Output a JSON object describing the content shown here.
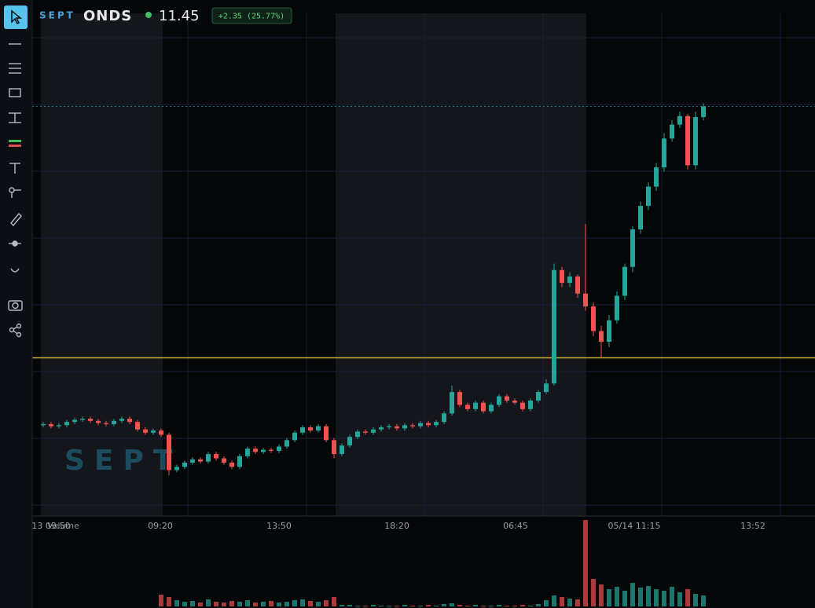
{
  "header": {
    "brand": "SEPT",
    "symbol": "ONDS",
    "last_price": "11.45",
    "change": "+2.35 (25.77%)"
  },
  "watermark": "SEPT",
  "chart_data": {
    "type": "candlestick",
    "x_labels": [
      "13 09:50",
      "09:20",
      "13:50",
      "18:20",
      "06:45",
      "05/14 11:15",
      "13:52"
    ],
    "volume_label": "Volume",
    "ylim": [
      7.62,
      12.32
    ],
    "up_color": "#26a69a",
    "down_color": "#ef5350",
    "price_line": {
      "value": 9.1,
      "color": "#c9b035"
    },
    "last_price_line": {
      "value": 11.45,
      "color": "#26a69a"
    },
    "open": [
      8.47,
      8.48,
      8.46,
      8.47,
      8.5,
      8.52,
      8.53,
      8.51,
      8.49,
      8.48,
      8.51,
      8.53,
      8.5,
      8.43,
      8.4,
      8.42,
      8.38,
      8.05,
      8.08,
      8.12,
      8.15,
      8.13,
      8.2,
      8.16,
      8.12,
      8.08,
      8.18,
      8.25,
      8.22,
      8.24,
      8.23,
      8.27,
      8.33,
      8.4,
      8.45,
      8.42,
      8.46,
      8.33,
      8.2,
      8.28,
      8.36,
      8.41,
      8.4,
      8.43,
      8.45,
      8.46,
      8.44,
      8.47,
      8.46,
      8.49,
      8.47,
      8.5,
      8.58,
      8.78,
      8.66,
      8.62,
      8.68,
      8.6,
      8.66,
      8.74,
      8.7,
      8.68,
      8.62,
      8.7,
      8.78,
      8.86,
      9.92,
      9.8,
      9.86,
      9.7,
      9.58,
      9.35,
      9.25,
      9.45,
      9.68,
      9.95,
      10.3,
      10.52,
      10.7,
      10.88,
      11.15,
      11.28,
      11.36,
      10.9,
      11.35
    ],
    "high": [
      8.5,
      8.5,
      8.49,
      8.52,
      8.54,
      8.55,
      8.55,
      8.53,
      8.51,
      8.53,
      8.55,
      8.55,
      8.52,
      8.45,
      8.44,
      8.44,
      8.4,
      8.1,
      8.14,
      8.17,
      8.17,
      8.22,
      8.22,
      8.18,
      8.14,
      8.2,
      8.27,
      8.27,
      8.26,
      8.26,
      8.29,
      8.35,
      8.42,
      8.47,
      8.47,
      8.48,
      8.48,
      8.35,
      8.3,
      8.38,
      8.43,
      8.43,
      8.45,
      8.47,
      8.48,
      8.48,
      8.49,
      8.49,
      8.51,
      8.51,
      8.52,
      8.6,
      8.84,
      8.8,
      8.68,
      8.7,
      8.7,
      8.68,
      8.76,
      8.76,
      8.72,
      8.7,
      8.72,
      8.8,
      8.9,
      9.98,
      9.95,
      9.9,
      9.88,
      10.35,
      9.62,
      9.4,
      9.5,
      9.72,
      9.98,
      10.33,
      10.56,
      10.74,
      10.92,
      11.2,
      11.32,
      11.4,
      11.38,
      11.4,
      11.48
    ],
    "low": [
      8.45,
      8.44,
      8.44,
      8.45,
      8.48,
      8.5,
      8.49,
      8.47,
      8.46,
      8.46,
      8.49,
      8.48,
      8.41,
      8.38,
      8.38,
      8.36,
      8.0,
      8.03,
      8.06,
      8.1,
      8.11,
      8.11,
      8.14,
      8.1,
      8.06,
      8.06,
      8.16,
      8.2,
      8.2,
      8.21,
      8.21,
      8.25,
      8.31,
      8.38,
      8.4,
      8.4,
      8.31,
      8.16,
      8.18,
      8.26,
      8.34,
      8.38,
      8.38,
      8.41,
      8.43,
      8.42,
      8.42,
      8.44,
      8.44,
      8.45,
      8.45,
      8.48,
      8.56,
      8.64,
      8.6,
      8.6,
      8.58,
      8.58,
      8.64,
      8.68,
      8.66,
      8.6,
      8.6,
      8.68,
      8.76,
      8.84,
      9.76,
      9.76,
      9.66,
      9.54,
      9.3,
      9.1,
      9.2,
      9.42,
      9.64,
      9.9,
      10.26,
      10.48,
      10.66,
      10.84,
      11.12,
      11.25,
      10.86,
      10.86,
      11.32
    ],
    "close": [
      8.48,
      8.46,
      8.47,
      8.5,
      8.52,
      8.53,
      8.51,
      8.49,
      8.48,
      8.51,
      8.53,
      8.5,
      8.43,
      8.4,
      8.42,
      8.38,
      8.05,
      8.08,
      8.12,
      8.15,
      8.13,
      8.2,
      8.16,
      8.12,
      8.08,
      8.18,
      8.25,
      8.22,
      8.24,
      8.23,
      8.27,
      8.33,
      8.4,
      8.45,
      8.42,
      8.46,
      8.33,
      8.2,
      8.28,
      8.36,
      8.41,
      8.4,
      8.43,
      8.45,
      8.46,
      8.44,
      8.47,
      8.46,
      8.49,
      8.47,
      8.5,
      8.58,
      8.78,
      8.66,
      8.62,
      8.68,
      8.6,
      8.66,
      8.74,
      8.7,
      8.68,
      8.62,
      8.7,
      8.78,
      8.86,
      9.92,
      9.8,
      9.86,
      9.7,
      9.58,
      9.35,
      9.25,
      9.45,
      9.68,
      9.95,
      10.3,
      10.52,
      10.7,
      10.88,
      11.15,
      11.28,
      11.36,
      10.9,
      11.35,
      11.45
    ],
    "volume": [
      0,
      0,
      0,
      0,
      0,
      0,
      0,
      0,
      0,
      0,
      0,
      0,
      0,
      0,
      0,
      150000,
      120000,
      80000,
      60000,
      70000,
      50000,
      90000,
      60000,
      50000,
      70000,
      60000,
      80000,
      50000,
      60000,
      70000,
      50000,
      60000,
      80000,
      90000,
      70000,
      60000,
      80000,
      120000,
      20000,
      20000,
      10000,
      10000,
      20000,
      10000,
      10000,
      10000,
      20000,
      10000,
      10000,
      20000,
      10000,
      30000,
      40000,
      20000,
      10000,
      20000,
      10000,
      10000,
      20000,
      10000,
      10000,
      20000,
      10000,
      30000,
      80000,
      140000,
      120000,
      100000,
      90000,
      1100000,
      350000,
      280000,
      220000,
      250000,
      200000,
      300000,
      240000,
      260000,
      220000,
      200000,
      250000,
      180000,
      220000,
      160000,
      140000
    ]
  }
}
